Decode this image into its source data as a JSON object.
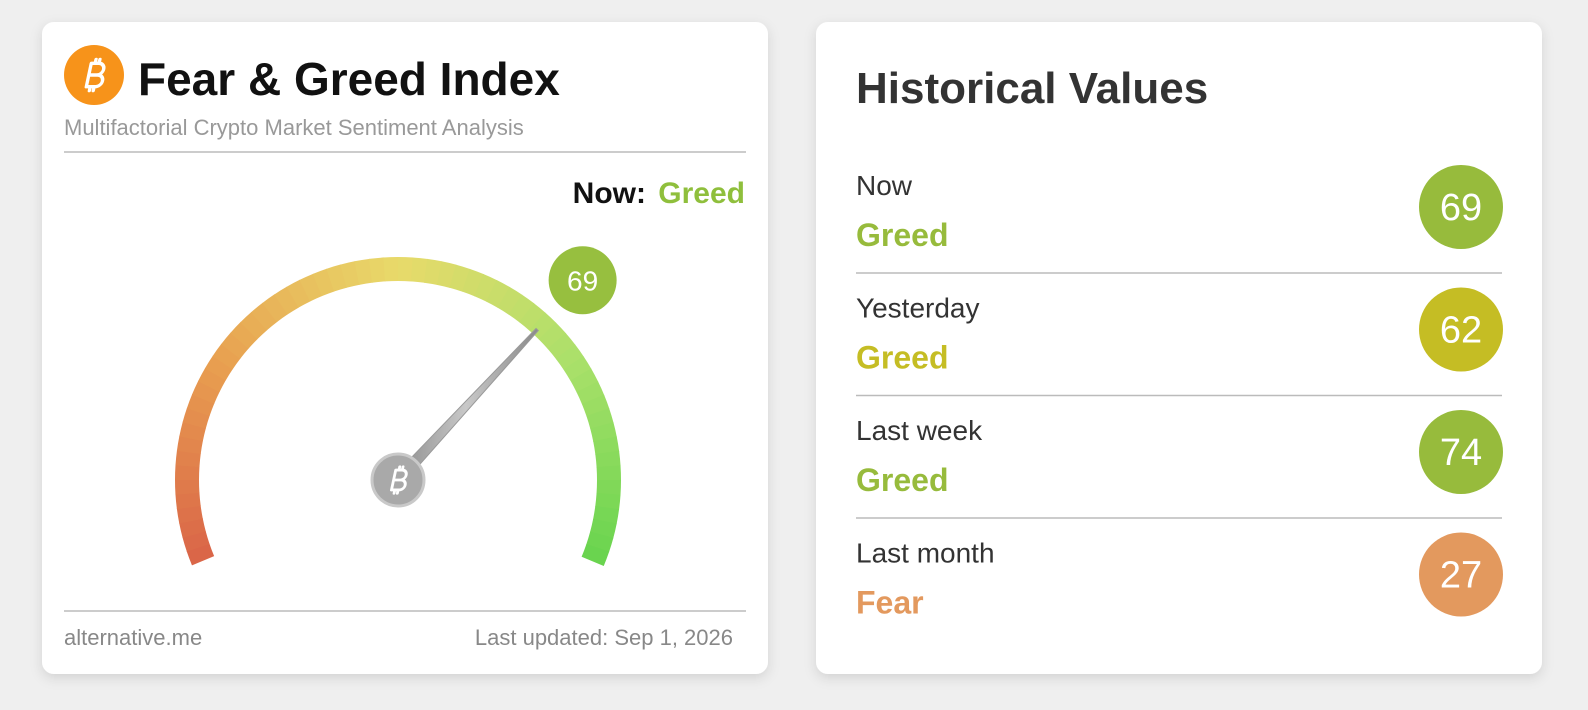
{
  "index_card": {
    "title": "Fear & Greed Index",
    "subtitle": "Multifactorial Crypto Market Sentiment Analysis",
    "now_label": "Now:",
    "now_status": "Greed",
    "status_color": "#8fbf3c",
    "gauge": {
      "value": 69,
      "range": [
        0,
        100
      ],
      "color": "#97bf3f"
    },
    "source": "alternative.me",
    "updated": "Last updated: Sep 1, 2026"
  },
  "history": {
    "title": "Historical Values",
    "rows": [
      {
        "period": "Now",
        "status": "Greed",
        "value": 69,
        "color": "#97bb3c"
      },
      {
        "period": "Yesterday",
        "status": "Greed",
        "value": 62,
        "color": "#c5bd24"
      },
      {
        "period": "Last week",
        "status": "Greed",
        "value": 74,
        "color": "#97bb3c"
      },
      {
        "period": "Last month",
        "status": "Fear",
        "value": 27,
        "color": "#e3995e"
      }
    ]
  }
}
